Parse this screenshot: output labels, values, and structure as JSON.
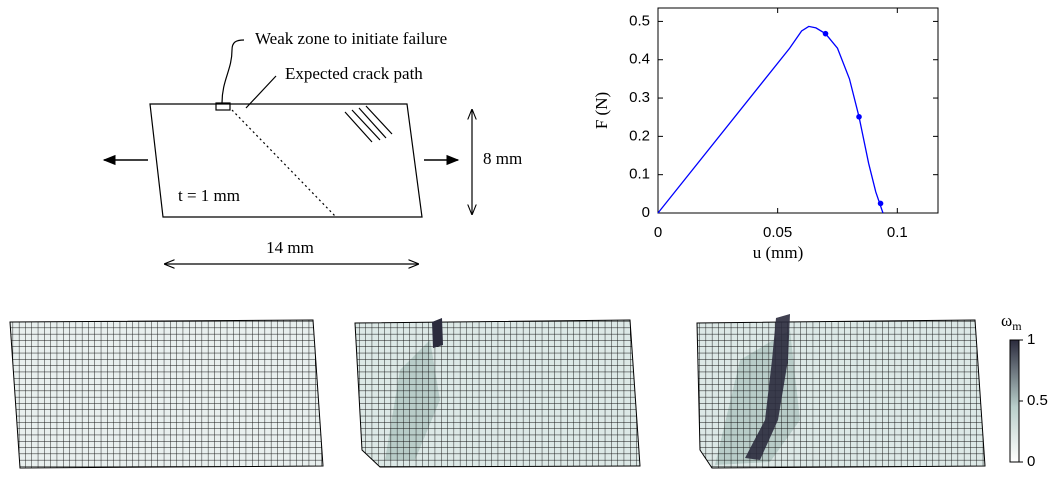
{
  "chart_data": {
    "type": "line",
    "x_label": "u (mm)",
    "y_label": "F (N)",
    "xlim": [
      0,
      0.117
    ],
    "ylim": [
      0,
      0.535
    ],
    "xticks": [
      0,
      0.05,
      0.1
    ],
    "yticks": [
      0,
      0.1,
      0.2,
      0.3,
      0.4,
      0.5
    ],
    "series": [
      {
        "color": "#0000ff",
        "x": [
          0,
          0.055,
          0.06,
          0.063,
          0.066,
          0.07,
          0.075,
          0.08,
          0.084,
          0.088,
          0.091,
          0.094
        ],
        "values": [
          0,
          0.43,
          0.475,
          0.487,
          0.483,
          0.468,
          0.43,
          0.35,
          0.251,
          0.13,
          0.055,
          0
        ]
      }
    ],
    "points": {
      "color": "#0000ff",
      "x": [
        0.07,
        0.084,
        0.093
      ],
      "values": [
        0.468,
        0.251,
        0.025
      ]
    }
  },
  "diagram": {
    "weak_zone": "Weak zone to initiate failure",
    "crack_path": "Expected crack path",
    "thickness": "t = 1 mm",
    "height": "8 mm",
    "width": "14 mm"
  },
  "colorbar": {
    "symbol": "ω",
    "subscript": "m",
    "lim": [
      0,
      1
    ],
    "ticks": [
      0,
      0.5,
      1
    ]
  }
}
